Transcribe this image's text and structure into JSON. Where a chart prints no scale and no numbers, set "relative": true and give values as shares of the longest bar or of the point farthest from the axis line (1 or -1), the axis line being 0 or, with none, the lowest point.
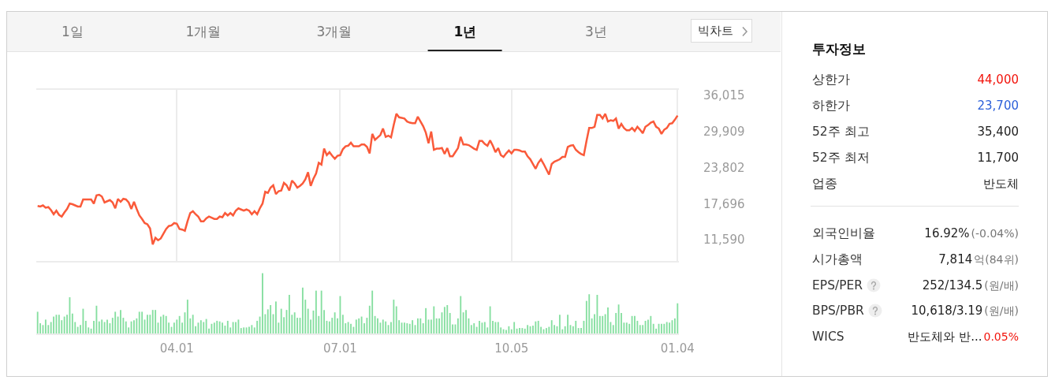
{
  "chart_data": [
    {
      "type": "other",
      "annotations": [
        "1일",
        "1개월",
        "3개월",
        "1년",
        "3년",
        "빅차트"
      ]
    },
    {
      "type": "line",
      "color": "#fa5a3a",
      "grid": "x",
      "tick_labels": "y",
      "ylim": [
        7990,
        36950
      ],
      "yticks": [
        {
          "value": 36015,
          "label": "36,015"
        },
        {
          "value": 29909,
          "label": "29,909"
        },
        {
          "value": 23802,
          "label": "23,802"
        },
        {
          "value": 17696,
          "label": "17,696"
        },
        {
          "value": 11590,
          "label": "11,590"
        }
      ],
      "categories": [
        null,
        null,
        null,
        null,
        null,
        null,
        null,
        null,
        null,
        null,
        null,
        null,
        null,
        null,
        null,
        null,
        null,
        null,
        null,
        null,
        null,
        null,
        null,
        null,
        null,
        null,
        null,
        null,
        null,
        null,
        null,
        null,
        null,
        null,
        null,
        null,
        null,
        null,
        null,
        null,
        null,
        null,
        null,
        null,
        null,
        null,
        null,
        null,
        null,
        null,
        null,
        null,
        "04.01",
        null,
        null,
        null,
        null,
        null,
        null,
        null,
        null,
        null,
        null,
        null,
        null,
        null,
        null,
        null,
        null,
        null,
        null,
        null,
        null,
        null,
        null,
        null,
        null,
        null,
        null,
        null,
        null,
        null,
        null,
        null,
        null,
        null,
        null,
        null,
        null,
        null,
        null,
        null,
        null,
        null,
        null,
        null,
        null,
        null,
        null,
        null,
        null,
        null,
        null,
        null,
        null,
        null,
        null,
        null,
        null,
        null,
        null,
        null,
        null,
        "07.01",
        null,
        null,
        null,
        null,
        null,
        null,
        null,
        null,
        null,
        null,
        null,
        null,
        null,
        null,
        null,
        null,
        null,
        null,
        null,
        null,
        null,
        null,
        null,
        null,
        null,
        null,
        null,
        null,
        null,
        null,
        null,
        null,
        null,
        null,
        null,
        null,
        null,
        null,
        null,
        null,
        null,
        null,
        null,
        null,
        null,
        null,
        null,
        null,
        null,
        null,
        null,
        null,
        null,
        null,
        null,
        null,
        null,
        null,
        null,
        null,
        null,
        null,
        null,
        "10.05",
        null,
        null,
        null,
        null,
        null,
        null,
        null,
        null,
        null,
        null,
        null,
        null,
        null,
        null,
        null,
        null,
        null,
        null,
        null,
        null,
        null,
        null,
        null,
        null,
        null,
        null,
        null,
        null,
        null,
        null,
        null,
        null,
        null,
        null,
        null,
        null,
        null,
        null,
        null,
        null,
        null,
        null,
        null,
        null,
        null,
        null,
        null,
        null,
        null,
        null,
        null,
        null,
        null,
        null,
        null,
        null,
        null,
        null,
        null,
        null,
        null,
        "01.04"
      ],
      "values": [
        17300,
        17200,
        17400,
        17000,
        17100,
        16600,
        15900,
        16500,
        15800,
        15500,
        16200,
        16800,
        17700,
        17600,
        17400,
        17200,
        17200,
        18400,
        18400,
        18400,
        18400,
        17700,
        19100,
        19200,
        18900,
        17900,
        18100,
        18300,
        17900,
        16900,
        18500,
        18000,
        18500,
        18400,
        17900,
        16800,
        18000,
        16800,
        15700,
        15100,
        14400,
        14200,
        13500,
        10800,
        11900,
        11500,
        11800,
        12600,
        13400,
        13900,
        14000,
        14400,
        14300,
        13400,
        13300,
        13100,
        14700,
        16100,
        16400,
        15900,
        15500,
        14700,
        14700,
        15200,
        15500,
        15300,
        15100,
        15100,
        15500,
        15400,
        16100,
        15700,
        16100,
        15700,
        16500,
        16900,
        16700,
        16500,
        16700,
        16500,
        15900,
        16400,
        15900,
        16900,
        17700,
        19700,
        19500,
        20400,
        20800,
        19300,
        19800,
        19900,
        21200,
        20800,
        19900,
        21600,
        21100,
        20400,
        20700,
        21100,
        21800,
        23000,
        20700,
        21900,
        22800,
        24600,
        24300,
        27000,
        25900,
        26400,
        25800,
        25300,
        25800,
        25900,
        26900,
        27400,
        27500,
        28000,
        27400,
        27400,
        27400,
        27700,
        27700,
        27300,
        26200,
        29500,
        28500,
        28900,
        29300,
        30400,
        29000,
        29200,
        28900,
        31000,
        32900,
        32300,
        32200,
        32100,
        31600,
        31400,
        31300,
        31300,
        32400,
        31600,
        30800,
        29700,
        27900,
        29900,
        26800,
        27000,
        27000,
        27100,
        26100,
        27100,
        25700,
        25700,
        26400,
        27100,
        29000,
        27700,
        27700,
        27600,
        27300,
        27000,
        26800,
        28300,
        28300,
        27800,
        27500,
        28400,
        27500,
        26400,
        27100,
        25900,
        25600,
        26200,
        26700,
        26200,
        26800,
        26800,
        26700,
        26500,
        26500,
        25700,
        25200,
        24400,
        23600,
        24600,
        25200,
        24400,
        23500,
        22600,
        24400,
        24800,
        25000,
        25200,
        25600,
        25600,
        27300,
        27500,
        27600,
        26800,
        26400,
        26100,
        25900,
        28300,
        30500,
        30500,
        30700,
        32700,
        32700,
        32100,
        32900,
        31600,
        31800,
        31700,
        32100,
        30400,
        31200,
        30500,
        30100,
        30100,
        30500,
        30000,
        30700,
        30200,
        29600,
        30700,
        31000,
        31400,
        31600,
        30700,
        30400,
        29500,
        30200,
        30500,
        31200,
        31300,
        31900,
        32600
      ]
    },
    {
      "type": "bar",
      "relative": true,
      "color": "#86dfa0",
      "categories": [
        null,
        null,
        null,
        null,
        null,
        null,
        null,
        null,
        null,
        null,
        null,
        null,
        null,
        null,
        null,
        null,
        null,
        null,
        null,
        null,
        null,
        null,
        null,
        null,
        null,
        null,
        null,
        null,
        null,
        null,
        null,
        null,
        null,
        null,
        null,
        null,
        null,
        null,
        null,
        null,
        null,
        null,
        null,
        null,
        null,
        null,
        null,
        null,
        null,
        null,
        null,
        null,
        "04.01",
        null,
        null,
        null,
        null,
        null,
        null,
        null,
        null,
        null,
        null,
        null,
        null,
        null,
        null,
        null,
        null,
        null,
        null,
        null,
        null,
        null,
        null,
        null,
        null,
        null,
        null,
        null,
        null,
        null,
        null,
        null,
        null,
        null,
        null,
        null,
        null,
        null,
        null,
        null,
        null,
        null,
        null,
        null,
        null,
        null,
        null,
        null,
        null,
        null,
        null,
        null,
        null,
        null,
        null,
        null,
        null,
        null,
        null,
        null,
        null,
        "07.01",
        null,
        null,
        null,
        null,
        null,
        null,
        null,
        null,
        null,
        null,
        null,
        null,
        null,
        null,
        null,
        null,
        null,
        null,
        null,
        null,
        null,
        null,
        null,
        null,
        null,
        null,
        null,
        null,
        null,
        null,
        null,
        null,
        null,
        null,
        null,
        null,
        null,
        null,
        null,
        null,
        null,
        null,
        null,
        null,
        null,
        null,
        null,
        null,
        null,
        null,
        null,
        null,
        null,
        null,
        null,
        null,
        null,
        null,
        null,
        null,
        null,
        null,
        null,
        "10.05",
        null,
        null,
        null,
        null,
        null,
        null,
        null,
        null,
        null,
        null,
        null,
        null,
        null,
        null,
        null,
        null,
        null,
        null,
        null,
        null,
        null,
        null,
        null,
        null,
        null,
        null,
        null,
        null,
        null,
        null,
        null,
        null,
        null,
        null,
        null,
        null,
        null,
        null,
        null,
        null,
        null,
        null,
        null,
        null,
        null,
        null,
        null,
        null,
        null,
        null,
        null,
        null,
        null,
        null,
        null,
        null,
        null,
        null,
        null,
        null,
        null,
        "01.04"
      ],
      "values": [
        0.36,
        0.17,
        0.14,
        0.23,
        0.14,
        0.19,
        0.28,
        0.31,
        0.31,
        0.22,
        0.28,
        0.31,
        0.6,
        0.33,
        0.19,
        0.11,
        0.14,
        0.41,
        0.21,
        0.1,
        0.08,
        0.21,
        0.46,
        0.2,
        0.23,
        0.19,
        0.23,
        0.17,
        0.26,
        0.36,
        0.28,
        0.39,
        0.26,
        0.2,
        0.1,
        0.2,
        0.22,
        0.25,
        0.36,
        0.36,
        0.23,
        0.31,
        0.31,
        0.39,
        0.39,
        0.18,
        0.28,
        0.31,
        0.29,
        0.18,
        0.11,
        0.18,
        0.23,
        0.29,
        0.18,
        0.35,
        0.56,
        0.25,
        0.31,
        0.12,
        0.18,
        0.22,
        0.19,
        0.24,
        0.08,
        0.16,
        0.18,
        0.21,
        0.2,
        0.18,
        0.13,
        0.21,
        0.1,
        0.19,
        0.19,
        0.23,
        0.09,
        0.1,
        0.1,
        0.11,
        0.14,
        0.1,
        0.21,
        0.28,
        1,
        0.32,
        0.4,
        0.47,
        0.32,
        0.53,
        0.18,
        0.41,
        0.27,
        0.39,
        0.64,
        0.31,
        0.35,
        0.26,
        0.26,
        0.76,
        0.56,
        0.41,
        0.23,
        0.38,
        0.71,
        0.29,
        0.71,
        0.39,
        0.21,
        0.2,
        0.26,
        0.35,
        0.25,
        0.62,
        0.31,
        0.17,
        0.19,
        0.16,
        0.11,
        0.23,
        0.25,
        0.28,
        0.17,
        0.26,
        0.46,
        0.71,
        0.29,
        0.25,
        0.18,
        0.23,
        0.2,
        0.14,
        0.19,
        0.56,
        0.45,
        0.22,
        0.18,
        0.18,
        0.17,
        0.16,
        0.22,
        0.14,
        0.25,
        0.25,
        0.17,
        0.42,
        0.23,
        0.23,
        0.45,
        0.25,
        0.25,
        0.35,
        0.44,
        0.47,
        0.34,
        0.15,
        0.15,
        0.25,
        0.62,
        0.35,
        0.39,
        0.25,
        0.14,
        0.17,
        0.11,
        0.21,
        0.18,
        0.19,
        0.1,
        0.45,
        0.21,
        0.19,
        0.19,
        0.1,
        0.07,
        0.06,
        0.12,
        0.07,
        0.19,
        0.08,
        0.09,
        0.09,
        0.08,
        0.14,
        0.12,
        0.13,
        0.2,
        0.21,
        0.11,
        0.07,
        0.09,
        0.11,
        0.22,
        0.14,
        0.12,
        0.31,
        0.07,
        0.12,
        0.31,
        0.14,
        0.12,
        0.21,
        0.09,
        0.09,
        0.21,
        0.54,
        0.65,
        0.25,
        0.32,
        0.64,
        0.29,
        0.29,
        0.32,
        0.43,
        0.19,
        0.14,
        0.34,
        0.48,
        0.34,
        0.18,
        0.18,
        0.16,
        0.29,
        0.29,
        0.21,
        0.14,
        0.14,
        0.21,
        0.23,
        0.29,
        0.16,
        0.08,
        0.16,
        0.16,
        0.16,
        0.19,
        0.18,
        0.22,
        0.25,
        0.5
      ]
    },
    {
      "type": "other",
      "title": "투자정보",
      "categories": [
        "상한가",
        "하한가",
        "52주 최고",
        "52주 최저",
        "업종",
        "외국인비율",
        "시가총액",
        "EPS/PER",
        "BPS/PBR",
        "WICS"
      ],
      "annotations": [
        "44,000",
        "23,700",
        "35,400",
        "11,700",
        "반도체",
        "16.92%",
        "7,814",
        "252/134.5",
        "10,618/3.19",
        "반도체와 반..."
      ],
      "value_labels": [
        null,
        null,
        null,
        null,
        null,
        "(-0.04%)",
        "억(84위)",
        "(원/배)",
        "(원/배)",
        "0.05%"
      ]
    }
  ]
}
